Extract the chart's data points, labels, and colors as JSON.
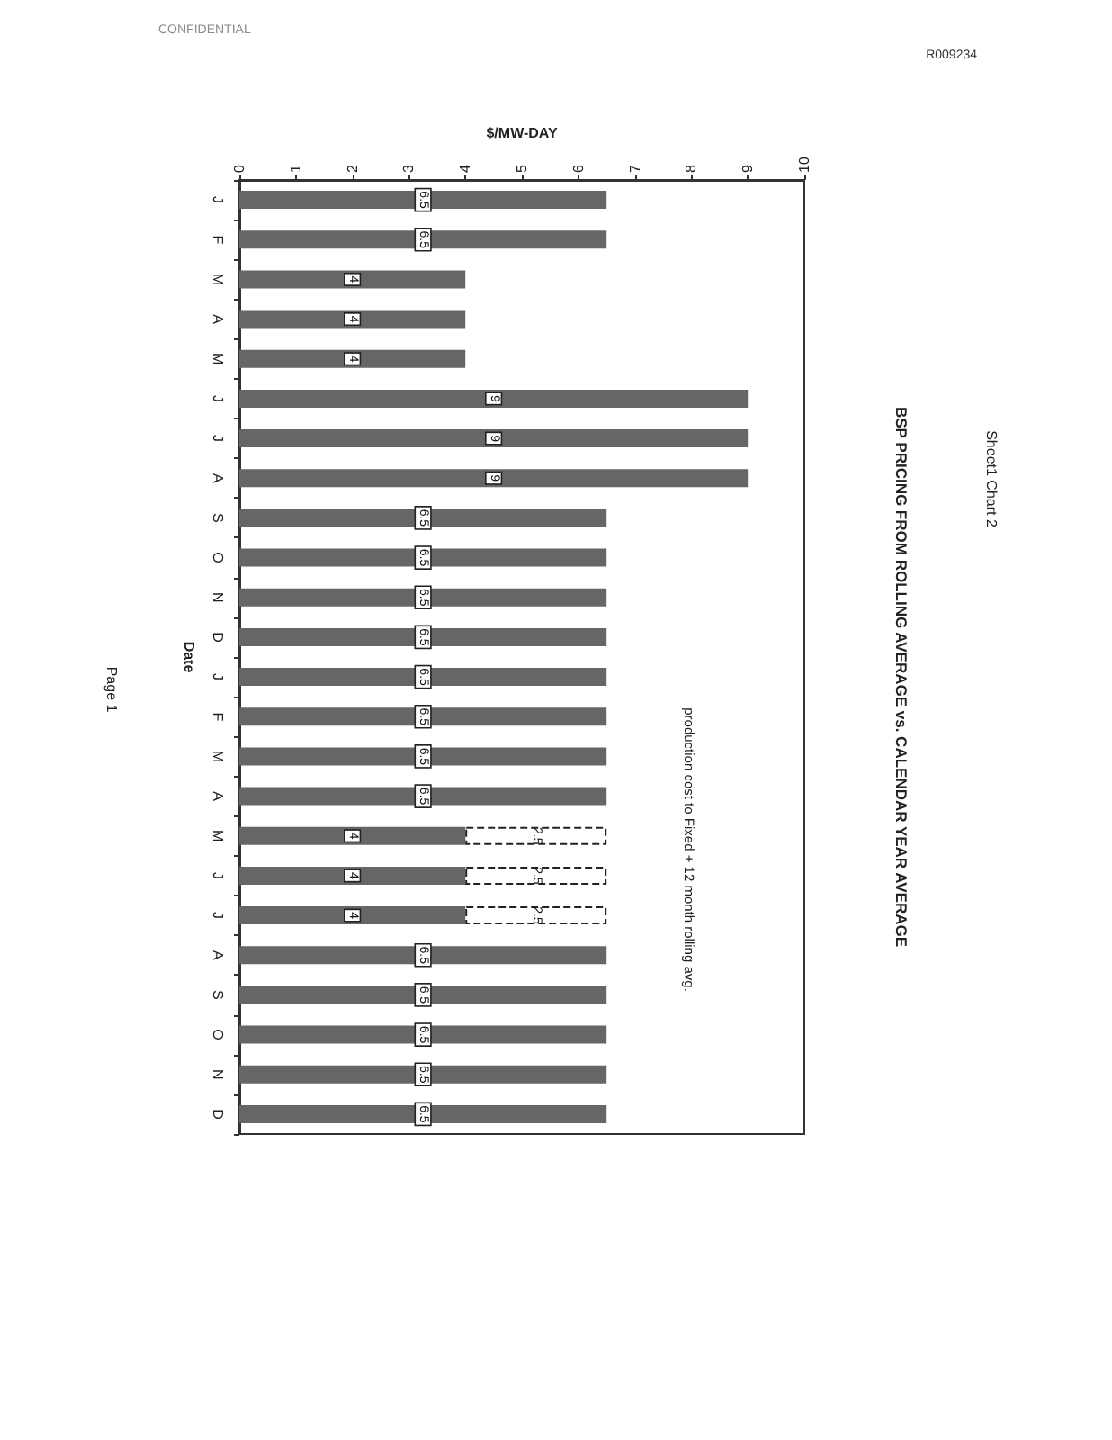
{
  "chart_data": {
    "type": "bar",
    "orientation": "horizontal",
    "stacked": true,
    "title": "BSP PRICING FROM ROLLING AVERAGE vs. CALENDAR YEAR AVERAGE",
    "xlabel": "$/MW-DAY",
    "ylabel": "Date",
    "categories": [
      "J",
      "F",
      "M",
      "A",
      "M",
      "J",
      "J",
      "A",
      "S",
      "O",
      "N",
      "D",
      "J",
      "F",
      "M",
      "A",
      "M",
      "J",
      "J",
      "A",
      "S",
      "O",
      "N",
      "D"
    ],
    "series": [
      {
        "color": "#666666",
        "values": [
          6.5,
          6.5,
          4,
          4,
          4,
          9,
          9,
          9,
          6.5,
          6.5,
          6.5,
          6.5,
          6.5,
          6.5,
          6.5,
          6.5,
          4,
          4,
          4,
          6.5,
          6.5,
          6.5,
          6.5,
          6.5
        ]
      },
      {
        "color": "#ffffff",
        "values": [
          null,
          null,
          null,
          null,
          null,
          null,
          null,
          null,
          null,
          null,
          null,
          null,
          null,
          null,
          null,
          null,
          2.5,
          2.5,
          2.5,
          null,
          null,
          null,
          null,
          null
        ]
      }
    ],
    "xlim": [
      0,
      10
    ],
    "xticks": [
      0,
      1,
      2,
      3,
      4,
      5,
      6,
      7,
      8,
      9,
      10
    ],
    "data_labels": true,
    "annotations": [
      "CONFIDENTIAL",
      "R009234",
      "Sheet1 Chart 2",
      "Page 1",
      "production cost to Fixed + 12 month rolling avg."
    ]
  }
}
